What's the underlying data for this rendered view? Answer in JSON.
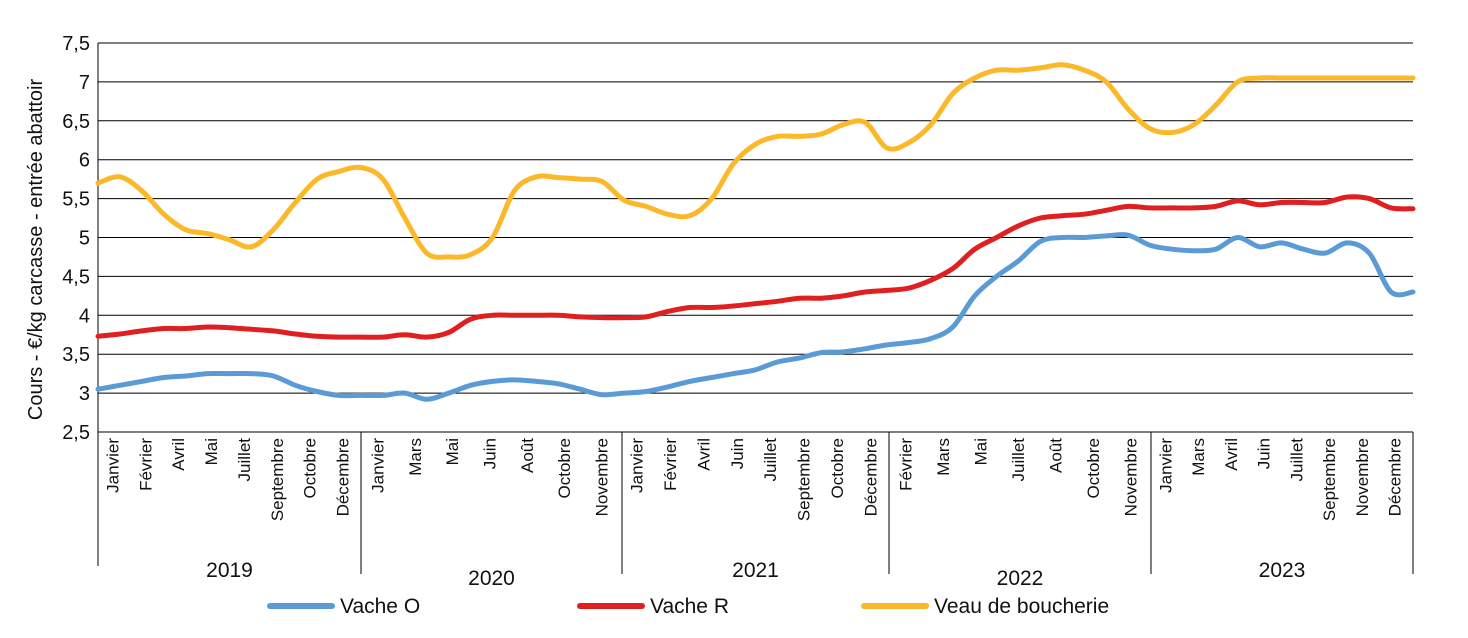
{
  "chart_data": {
    "type": "line",
    "title": "",
    "ylabel": "Cours - €/kg carcasse - entrée abattoir",
    "xlabel": "",
    "ylim": [
      2.5,
      7.5
    ],
    "yticks": [
      "2,5",
      "3",
      "3,5",
      "4",
      "4,5",
      "5",
      "5,5",
      "6",
      "6,5",
      "7",
      "7,5"
    ],
    "grid": true,
    "legend_position": "bottom",
    "years": [
      {
        "label": "2019",
        "months": [
          "Janvier",
          "Février",
          "Avril",
          "Mai",
          "Juillet",
          "Septembre",
          "Octobre",
          "Décembre"
        ]
      },
      {
        "label": "2020",
        "months": [
          "Janvier",
          "Mars",
          "Mai",
          "Juin",
          "Août",
          "Octobre",
          "Novembre"
        ]
      },
      {
        "label": "2021",
        "months": [
          "Janvier",
          "Février",
          "Avril",
          "Juin",
          "Juillet",
          "Septembre",
          "Octobre",
          "Décembre"
        ]
      },
      {
        "label": "2022",
        "months": [
          "Février",
          "Mars",
          "Mai",
          "Juillet",
          "Août",
          "Octobre",
          "Novembre"
        ]
      },
      {
        "label": "2023",
        "months": [
          "Janvier",
          "Mars",
          "Avril",
          "Juin",
          "Juillet",
          "Septembre",
          "Novembre",
          "Décembre"
        ]
      }
    ],
    "x_range": [
      0,
      60
    ],
    "series": [
      {
        "name": "Vache O",
        "color": "#5b9bd5",
        "x": [
          0,
          1,
          2,
          3,
          4,
          5,
          6,
          7,
          8,
          9,
          10,
          11,
          12,
          13,
          14,
          15,
          16,
          17,
          18,
          19,
          20,
          21,
          22,
          23,
          24,
          25,
          26,
          27,
          28,
          29,
          30,
          31,
          32,
          33,
          34,
          35,
          36,
          37,
          38,
          39,
          40,
          41,
          42,
          43,
          44,
          45,
          46,
          47,
          48,
          49,
          50,
          51,
          52,
          53,
          54,
          55,
          56,
          57,
          58,
          59,
          60
        ],
        "values": [
          3.05,
          3.1,
          3.15,
          3.2,
          3.22,
          3.25,
          3.25,
          3.25,
          3.22,
          3.1,
          3.02,
          2.97,
          2.97,
          2.97,
          3.0,
          2.92,
          3.0,
          3.1,
          3.15,
          3.17,
          3.15,
          3.12,
          3.05,
          2.98,
          3.0,
          3.02,
          3.08,
          3.15,
          3.2,
          3.25,
          3.3,
          3.4,
          3.45,
          3.52,
          3.53,
          3.57,
          3.62,
          3.65,
          3.7,
          3.85,
          4.25,
          4.5,
          4.7,
          4.95,
          5.0,
          5.0,
          5.02,
          5.03,
          4.9,
          4.85,
          4.83,
          4.85,
          5.0,
          4.88,
          4.93,
          4.85,
          4.8,
          4.93,
          4.8,
          4.3,
          4.3
        ]
      },
      {
        "name": "Vache R",
        "color": "#e02020",
        "x": [
          0,
          1,
          2,
          3,
          4,
          5,
          6,
          7,
          8,
          9,
          10,
          11,
          12,
          13,
          14,
          15,
          16,
          17,
          18,
          19,
          20,
          21,
          22,
          23,
          24,
          25,
          26,
          27,
          28,
          29,
          30,
          31,
          32,
          33,
          34,
          35,
          36,
          37,
          38,
          39,
          40,
          41,
          42,
          43,
          44,
          45,
          46,
          47,
          48,
          49,
          50,
          51,
          52,
          53,
          54,
          55,
          56,
          57,
          58,
          59,
          60
        ],
        "values": [
          3.73,
          3.76,
          3.8,
          3.83,
          3.83,
          3.85,
          3.84,
          3.82,
          3.8,
          3.76,
          3.73,
          3.72,
          3.72,
          3.72,
          3.75,
          3.72,
          3.78,
          3.95,
          4.0,
          4.0,
          4.0,
          4.0,
          3.98,
          3.97,
          3.97,
          3.98,
          4.05,
          4.1,
          4.1,
          4.12,
          4.15,
          4.18,
          4.22,
          4.22,
          4.25,
          4.3,
          4.32,
          4.35,
          4.45,
          4.6,
          4.85,
          5.0,
          5.15,
          5.25,
          5.28,
          5.3,
          5.35,
          5.4,
          5.38,
          5.38,
          5.38,
          5.4,
          5.47,
          5.42,
          5.45,
          5.45,
          5.45,
          5.52,
          5.5,
          5.38,
          5.37
        ]
      },
      {
        "name": "Veau de boucherie",
        "color": "#fbb829",
        "x": [
          0,
          1,
          2,
          3,
          4,
          5,
          6,
          7,
          8,
          9,
          10,
          11,
          12,
          13,
          14,
          15,
          16,
          17,
          18,
          19,
          20,
          21,
          22,
          23,
          24,
          25,
          26,
          27,
          28,
          29,
          30,
          31,
          32,
          33,
          34,
          35,
          36,
          37,
          38,
          39,
          40,
          41,
          42,
          43,
          44,
          45,
          46,
          47,
          48,
          49,
          50,
          51,
          52,
          53,
          54,
          55,
          56,
          57,
          58,
          59,
          60
        ],
        "values": [
          5.7,
          5.78,
          5.6,
          5.3,
          5.1,
          5.05,
          4.97,
          4.88,
          5.1,
          5.45,
          5.75,
          5.85,
          5.9,
          5.75,
          5.25,
          4.8,
          4.75,
          4.78,
          5.0,
          5.6,
          5.78,
          5.77,
          5.75,
          5.72,
          5.48,
          5.4,
          5.3,
          5.28,
          5.5,
          5.95,
          6.2,
          6.3,
          6.3,
          6.33,
          6.45,
          6.48,
          6.15,
          6.22,
          6.45,
          6.85,
          7.05,
          7.15,
          7.15,
          7.18,
          7.22,
          7.15,
          7.0,
          6.65,
          6.4,
          6.35,
          6.45,
          6.7,
          7.0,
          7.05,
          7.05,
          7.05,
          7.05,
          7.05,
          7.05,
          7.05,
          7.05
        ]
      }
    ]
  }
}
